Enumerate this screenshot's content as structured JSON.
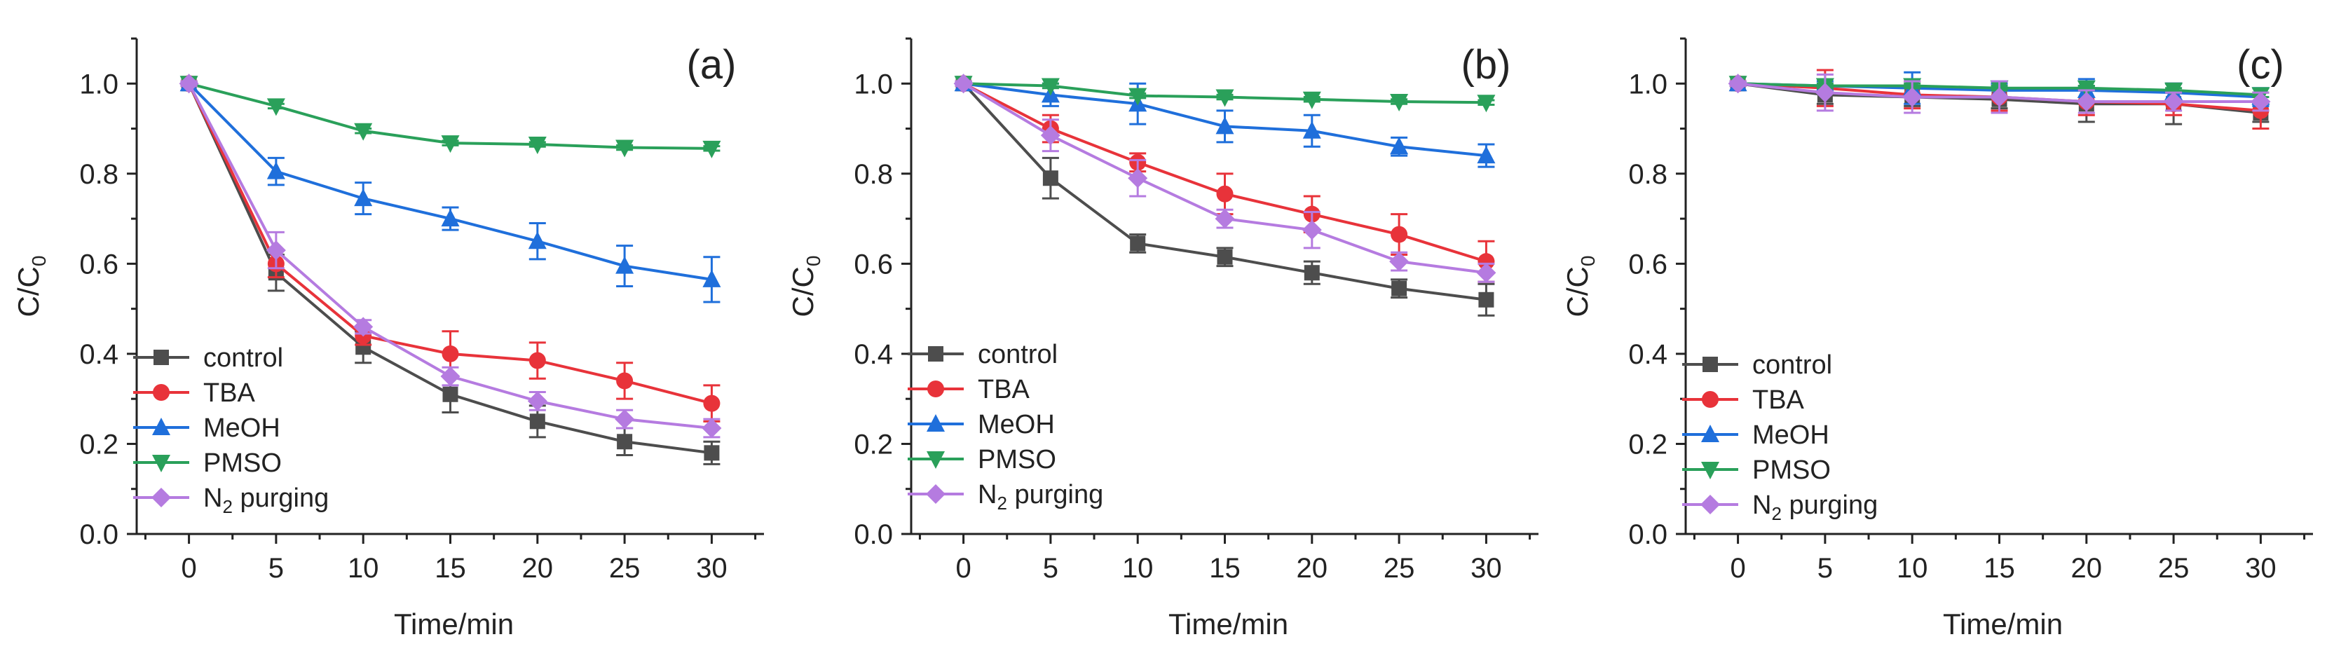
{
  "chart_data": [
    {
      "type": "line",
      "panel_label": "(a)",
      "xlabel": "Time/min",
      "ylabel": "C/C",
      "ylabel_sub": "0",
      "xlim": [
        -3,
        33
      ],
      "ylim": [
        0,
        1.1
      ],
      "x_ticks": [
        "0",
        "5",
        "10",
        "15",
        "20",
        "25",
        "30"
      ],
      "y_ticks": [
        "0.0",
        "0.2",
        "0.4",
        "0.6",
        "0.8",
        "1.0"
      ],
      "legend_position": "bottom-left",
      "x": [
        0,
        5,
        10,
        15,
        20,
        25,
        30
      ],
      "series": [
        {
          "name": "control",
          "color": "#4d4d4d",
          "marker": "square",
          "values": [
            1.0,
            0.58,
            0.415,
            0.31,
            0.25,
            0.205,
            0.18
          ],
          "errors": [
            0.005,
            0.04,
            0.035,
            0.04,
            0.035,
            0.03,
            0.025
          ]
        },
        {
          "name": "TBA",
          "color": "#e8333a",
          "marker": "circle",
          "values": [
            1.0,
            0.6,
            0.44,
            0.4,
            0.385,
            0.34,
            0.29
          ],
          "errors": [
            0.005,
            0.03,
            0.02,
            0.05,
            0.04,
            0.04,
            0.04
          ]
        },
        {
          "name": "MeOH",
          "color": "#1f6fdb",
          "marker": "triangle-up",
          "values": [
            1.0,
            0.805,
            0.745,
            0.7,
            0.65,
            0.595,
            0.565
          ],
          "errors": [
            0.005,
            0.03,
            0.035,
            0.025,
            0.04,
            0.045,
            0.05
          ]
        },
        {
          "name": "PMSO",
          "color": "#2aa05a",
          "marker": "triangle-down",
          "values": [
            1.0,
            0.95,
            0.895,
            0.868,
            0.865,
            0.858,
            0.856
          ],
          "errors": [
            0.003,
            0.005,
            0.005,
            0.005,
            0.005,
            0.005,
            0.005
          ]
        },
        {
          "name": "N",
          "name_sub": "2",
          "name_tail": "purging",
          "color": "#b57be0",
          "marker": "diamond",
          "values": [
            1.0,
            0.63,
            0.46,
            0.35,
            0.295,
            0.255,
            0.235
          ],
          "errors": [
            0.005,
            0.04,
            0.015,
            0.02,
            0.02,
            0.02,
            0.02
          ]
        }
      ]
    },
    {
      "type": "line",
      "panel_label": "(b)",
      "xlabel": "Time/min",
      "ylabel": "C/C",
      "ylabel_sub": "0",
      "xlim": [
        -3,
        33
      ],
      "ylim": [
        0,
        1.1
      ],
      "x_ticks": [
        "0",
        "5",
        "10",
        "15",
        "20",
        "25",
        "30"
      ],
      "y_ticks": [
        "0.0",
        "0.2",
        "0.4",
        "0.6",
        "0.8",
        "1.0"
      ],
      "legend_position": "bottom-left",
      "x": [
        0,
        5,
        10,
        15,
        20,
        25,
        30
      ],
      "series": [
        {
          "name": "control",
          "color": "#4d4d4d",
          "marker": "square",
          "values": [
            1.0,
            0.79,
            0.645,
            0.615,
            0.58,
            0.545,
            0.52
          ],
          "errors": [
            0.005,
            0.045,
            0.02,
            0.02,
            0.025,
            0.02,
            0.035
          ]
        },
        {
          "name": "TBA",
          "color": "#e8333a",
          "marker": "circle",
          "values": [
            1.0,
            0.9,
            0.825,
            0.755,
            0.71,
            0.665,
            0.605
          ],
          "errors": [
            0.005,
            0.03,
            0.02,
            0.045,
            0.04,
            0.045,
            0.045
          ]
        },
        {
          "name": "MeOH",
          "color": "#1f6fdb",
          "marker": "triangle-up",
          "values": [
            1.0,
            0.975,
            0.955,
            0.905,
            0.895,
            0.86,
            0.84
          ],
          "errors": [
            0.005,
            0.025,
            0.045,
            0.035,
            0.035,
            0.02,
            0.025
          ]
        },
        {
          "name": "PMSO",
          "color": "#2aa05a",
          "marker": "triangle-down",
          "values": [
            1.0,
            0.995,
            0.973,
            0.97,
            0.965,
            0.96,
            0.958
          ],
          "errors": [
            0.003,
            0.005,
            0.005,
            0.005,
            0.005,
            0.005,
            0.005
          ]
        },
        {
          "name": "N",
          "name_sub": "2",
          "name_tail": "purging",
          "color": "#b57be0",
          "marker": "diamond",
          "values": [
            1.0,
            0.885,
            0.79,
            0.7,
            0.675,
            0.605,
            0.58
          ],
          "errors": [
            0.005,
            0.035,
            0.04,
            0.02,
            0.04,
            0.02,
            0.02
          ]
        }
      ]
    },
    {
      "type": "line",
      "panel_label": "(c)",
      "xlabel": "Time/min",
      "ylabel": "C/C",
      "ylabel_sub": "0",
      "xlim": [
        -3,
        33
      ],
      "ylim": [
        0,
        1.1
      ],
      "x_ticks": [
        "0",
        "5",
        "10",
        "15",
        "20",
        "25",
        "30"
      ],
      "y_ticks": [
        "0.0",
        "0.2",
        "0.4",
        "0.6",
        "0.8",
        "1.0"
      ],
      "legend_position": "bottom-left",
      "x": [
        0,
        5,
        10,
        15,
        20,
        25,
        30
      ],
      "series": [
        {
          "name": "control",
          "color": "#4d4d4d",
          "marker": "square",
          "values": [
            1.0,
            0.975,
            0.97,
            0.965,
            0.955,
            0.955,
            0.935
          ],
          "errors": [
            0.005,
            0.02,
            0.02,
            0.02,
            0.04,
            0.045,
            0.02
          ]
        },
        {
          "name": "TBA",
          "color": "#e8333a",
          "marker": "circle",
          "values": [
            1.0,
            0.99,
            0.975,
            0.97,
            0.96,
            0.955,
            0.94
          ],
          "errors": [
            0.005,
            0.04,
            0.03,
            0.03,
            0.03,
            0.025,
            0.04
          ]
        },
        {
          "name": "MeOH",
          "color": "#1f6fdb",
          "marker": "triangle-up",
          "values": [
            1.0,
            0.995,
            0.99,
            0.985,
            0.985,
            0.98,
            0.97
          ],
          "errors": [
            0.005,
            0.01,
            0.035,
            0.015,
            0.025,
            0.02,
            0.02
          ]
        },
        {
          "name": "PMSO",
          "color": "#2aa05a",
          "marker": "triangle-down",
          "values": [
            1.0,
            0.995,
            0.995,
            0.99,
            0.99,
            0.985,
            0.975
          ],
          "errors": [
            0.003,
            0.005,
            0.005,
            0.005,
            0.005,
            0.005,
            0.005
          ]
        },
        {
          "name": "N",
          "name_sub": "2",
          "name_tail": "purging",
          "color": "#b57be0",
          "marker": "diamond",
          "values": [
            1.0,
            0.98,
            0.97,
            0.97,
            0.96,
            0.96,
            0.96
          ],
          "errors": [
            0.005,
            0.04,
            0.035,
            0.035,
            0.025,
            0.02,
            0.02
          ]
        }
      ]
    }
  ]
}
